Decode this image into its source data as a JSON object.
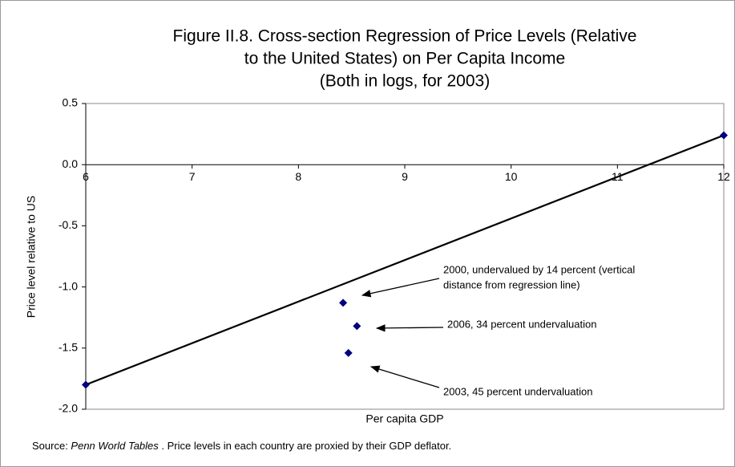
{
  "chart_data": {
    "type": "scatter",
    "title": [
      "Figure II.8. Cross-section Regression of Price Levels (Relative",
      "to the United States) on Per Capita Income",
      "(Both in logs, for 2003)"
    ],
    "xlabel": "Per capita GDP",
    "ylabel": "Price level relative to US",
    "xlim": [
      6,
      12
    ],
    "xticks": [
      6,
      7,
      8,
      9,
      10,
      11,
      12
    ],
    "ylim": [
      -2,
      0.5
    ],
    "yticks": [
      0.5,
      {
        "value": 0,
        "label": "0.0"
      },
      -0.5,
      {
        "value": -1,
        "label": "-1.0"
      },
      -1.5,
      {
        "value": -2,
        "label": "-2.0"
      }
    ],
    "series": [
      {
        "type": "line",
        "color": "#000000",
        "x": [
          6,
          12
        ],
        "values": [
          -1.8,
          0.24
        ]
      },
      {
        "type": "scatter",
        "color": "#000080",
        "x": [
          6,
          12,
          8.42,
          8.55,
          8.47
        ],
        "values": [
          -1.8,
          0.24,
          -1.13,
          -1.32,
          -1.54
        ]
      }
    ],
    "annotations": [
      [
        "2000, undervalued by 14 percent (vertical",
        "distance from regression line)"
      ],
      [
        "2006, 34 percent undervaluation"
      ],
      [
        "2003, 45 percent undervaluation"
      ]
    ],
    "source": [
      "Source: ",
      "Penn World Tables",
      " . Price levels in each country are proxied by their GDP deflator."
    ]
  }
}
